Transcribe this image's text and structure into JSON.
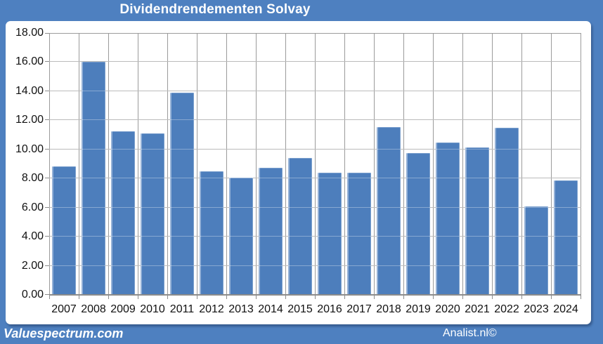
{
  "title": "Dividendrendementen Solvay",
  "footer": {
    "left": "Valuespectrum.com",
    "right": "Analist.nl©"
  },
  "colors": {
    "frame_blue": "#4e80c0",
    "bar_blue": "#4d7ebc",
    "gridline_gray": "#9b9b9b",
    "axis_gray": "#8c8c8c",
    "panel_white": "#ffffff",
    "title_text": "#ffffff",
    "axis_label_text": "#111111"
  },
  "chart_data": {
    "type": "bar",
    "title": "Dividendrendementen Solvay",
    "categories": [
      "2007",
      "2008",
      "2009",
      "2010",
      "2011",
      "2012",
      "2013",
      "2014",
      "2015",
      "2016",
      "2017",
      "2018",
      "2019",
      "2020",
      "2021",
      "2022",
      "2023",
      "2024"
    ],
    "values": [
      8.85,
      16.0,
      11.25,
      11.1,
      13.9,
      8.5,
      8.05,
      8.75,
      9.4,
      8.4,
      8.4,
      11.55,
      9.75,
      10.45,
      10.15,
      11.5,
      6.1,
      7.85
    ],
    "xlabel": "",
    "ylabel": "",
    "ylim": [
      0,
      18
    ],
    "ytick_step": 2,
    "ytick_labels": [
      "0.00",
      "2.00",
      "4.00",
      "6.00",
      "8.00",
      "10.00",
      "12.00",
      "14.00",
      "16.00",
      "18.00"
    ],
    "grid": true,
    "legend": false
  }
}
